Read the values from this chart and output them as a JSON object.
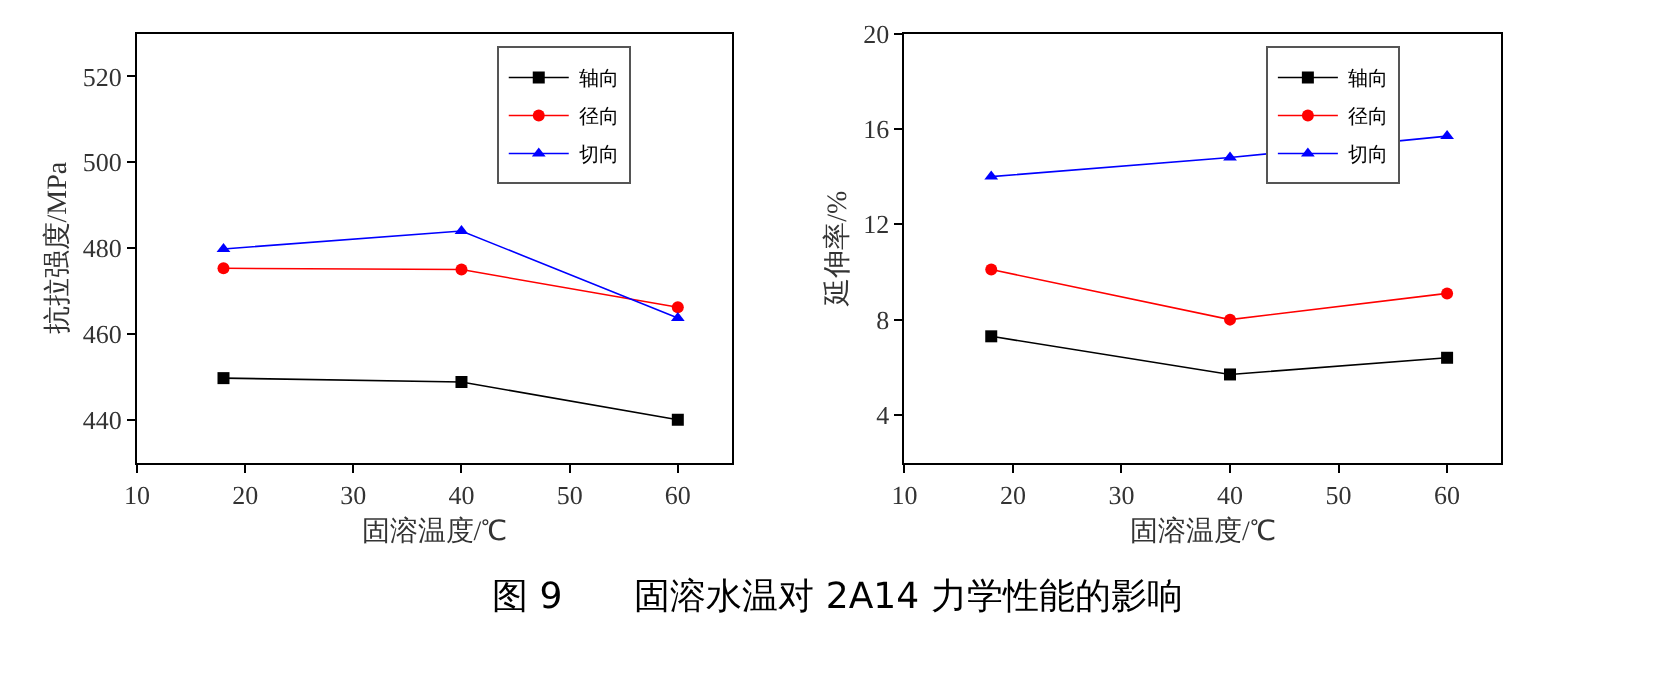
{
  "chart_data": [
    {
      "type": "line",
      "xlabel": "固溶温度/℃",
      "ylabel": "抗拉强度/MPa",
      "x": [
        18,
        40,
        60
      ],
      "xlim": [
        10,
        65
      ],
      "xticks": [
        10,
        20,
        30,
        40,
        50,
        60
      ],
      "ylim": [
        430,
        530
      ],
      "yticks": [
        440,
        460,
        480,
        500,
        520
      ],
      "legend": "top right",
      "series": [
        {
          "name": "轴向",
          "color": "#000000",
          "marker": "square",
          "values": [
            449.7,
            448.8,
            440
          ]
        },
        {
          "name": "径向",
          "color": "#ff0000",
          "marker": "circle",
          "values": [
            475.3,
            475,
            466.2
          ]
        },
        {
          "name": "切向",
          "color": "#0000ff",
          "marker": "triangle",
          "values": [
            479.8,
            484,
            463.7
          ]
        }
      ]
    },
    {
      "type": "line",
      "xlabel": "固溶温度/℃",
      "ylabel": "延伸率/%",
      "x": [
        18,
        40,
        60
      ],
      "xlim": [
        10,
        65
      ],
      "xticks": [
        10,
        20,
        30,
        40,
        50,
        60
      ],
      "ylim": [
        2,
        20
      ],
      "yticks": [
        4,
        8,
        12,
        16,
        20
      ],
      "legend": "top right",
      "annotations": [
        "图 9　　固溶水温对 2A14 力学性能的影响"
      ],
      "series": [
        {
          "name": "轴向",
          "color": "#000000",
          "marker": "square",
          "values": [
            7.3,
            5.7,
            6.4
          ]
        },
        {
          "name": "径向",
          "color": "#ff0000",
          "marker": "circle",
          "values": [
            10.1,
            8.0,
            9.1
          ]
        },
        {
          "name": "切向",
          "color": "#0000ff",
          "marker": "triangle",
          "values": [
            14.0,
            14.8,
            15.7
          ]
        }
      ]
    }
  ]
}
